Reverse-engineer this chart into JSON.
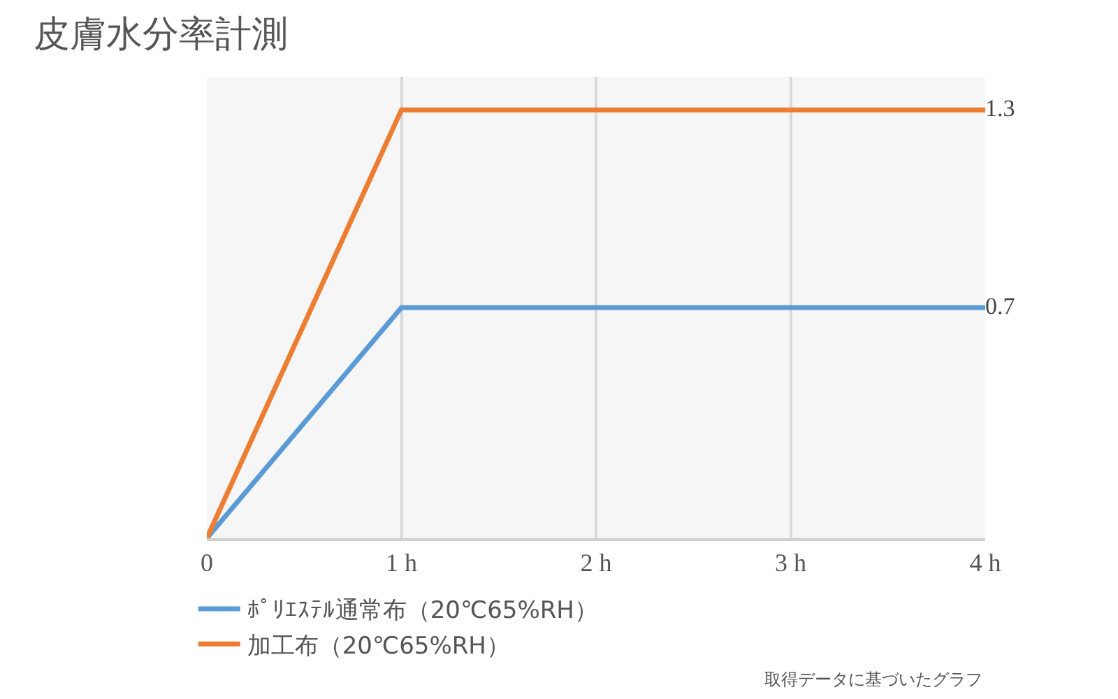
{
  "chart_data": {
    "type": "line",
    "title": "皮膚水分率計測",
    "x": [
      0,
      1,
      2,
      3,
      4
    ],
    "xlim": [
      0,
      4
    ],
    "xticks": [
      {
        "value": 0,
        "label": "0"
      },
      {
        "value": 1,
        "label": "1 h"
      },
      {
        "value": 2,
        "label": "2 h"
      },
      {
        "value": 3,
        "label": "3 h"
      },
      {
        "value": 4,
        "label": "4 h"
      }
    ],
    "ylim": [
      0,
      1.4
    ],
    "series": [
      {
        "name": "ﾎﾟﾘｴｽﾃﾙ通常布（20℃65%RH）",
        "color": "#5b9bd5",
        "values": [
          0,
          0.7,
          0.7,
          0.7,
          0.7
        ],
        "value_labels": [
          null,
          null,
          null,
          null,
          "0.7"
        ]
      },
      {
        "name": "加工布（20℃65%RH）",
        "color": "#ed7d31",
        "values": [
          0,
          1.3,
          1.3,
          1.3,
          1.3
        ],
        "value_labels": [
          null,
          null,
          null,
          null,
          "1.3"
        ]
      }
    ],
    "grid": "x",
    "legend": "bottom left",
    "tick_labels": "x",
    "marker": "none",
    "line_style": "solid",
    "annotations": [
      "取得データに基づいたグラフ"
    ]
  }
}
